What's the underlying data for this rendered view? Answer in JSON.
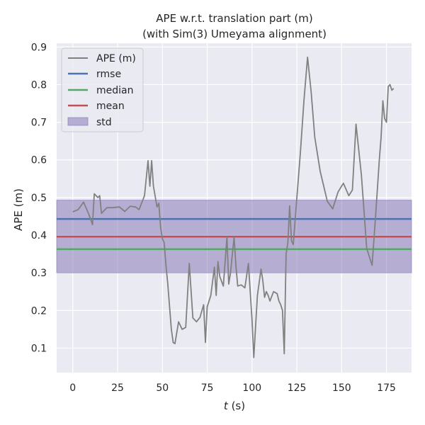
{
  "chart_data": {
    "type": "line",
    "title": "APE w.r.t. translation part (m)",
    "subtitle": "(with Sim(3) Umeyama alignment)",
    "xlabel_var": "t",
    "xlabel_unit": " (s)",
    "ylabel": "APE (m)",
    "xlim": [
      -9,
      189
    ],
    "ylim": [
      0.035,
      0.91
    ],
    "xticks": [
      0,
      25,
      50,
      75,
      100,
      125,
      150,
      175
    ],
    "yticks": [
      0.1,
      0.2,
      0.3,
      0.4,
      0.5,
      0.6,
      0.7,
      0.8,
      0.9
    ],
    "grid": true,
    "legend_position": "top-left",
    "legend": [
      "APE (m)",
      "rmse",
      "median",
      "mean",
      "std"
    ],
    "colors": {
      "background": "#eaeaf2",
      "grid": "#ffffff",
      "ape": "#808080",
      "rmse": "#4c72b0",
      "median": "#55a868",
      "mean": "#c44e52",
      "std": "#8172b2"
    },
    "stats": {
      "rmse": 0.443,
      "median": 0.363,
      "mean": 0.396,
      "std_band": [
        0.3,
        0.493
      ]
    },
    "series": [
      {
        "name": "APE (m)",
        "x": [
          0,
          3,
          6,
          9,
          11,
          12,
          14,
          15,
          16,
          19,
          22,
          26,
          29,
          32,
          35,
          37,
          40,
          42,
          43,
          44,
          45,
          47,
          48,
          49,
          50,
          51,
          52,
          53,
          55,
          56,
          57,
          59,
          61,
          63,
          65,
          67,
          69,
          71,
          73,
          74,
          75,
          77,
          79,
          80,
          81,
          82,
          84,
          86,
          87,
          88,
          90,
          91,
          92,
          94,
          96,
          98,
          100,
          101,
          102,
          103,
          105,
          106,
          107,
          108,
          109,
          110,
          112,
          114,
          115,
          116,
          117,
          118,
          119,
          120,
          121,
          122,
          123,
          125,
          127,
          129,
          131,
          133,
          135,
          138,
          142,
          145,
          148,
          151,
          154,
          156,
          158,
          161,
          164,
          167,
          169,
          171,
          172,
          173,
          174,
          175,
          176,
          177,
          178,
          179
        ],
        "values": [
          0.462,
          0.468,
          0.488,
          0.455,
          0.428,
          0.51,
          0.5,
          0.505,
          0.458,
          0.473,
          0.473,
          0.475,
          0.463,
          0.477,
          0.475,
          0.468,
          0.505,
          0.598,
          0.53,
          0.598,
          0.53,
          0.475,
          0.485,
          0.42,
          0.39,
          0.38,
          0.32,
          0.27,
          0.15,
          0.115,
          0.112,
          0.17,
          0.15,
          0.155,
          0.325,
          0.18,
          0.17,
          0.182,
          0.215,
          0.115,
          0.21,
          0.24,
          0.315,
          0.24,
          0.33,
          0.29,
          0.265,
          0.395,
          0.27,
          0.3,
          0.395,
          0.32,
          0.265,
          0.268,
          0.26,
          0.325,
          0.175,
          0.075,
          0.16,
          0.24,
          0.31,
          0.28,
          0.235,
          0.25,
          0.24,
          0.225,
          0.25,
          0.245,
          0.225,
          0.215,
          0.2,
          0.085,
          0.35,
          0.38,
          0.478,
          0.385,
          0.375,
          0.5,
          0.62,
          0.76,
          0.873,
          0.78,
          0.66,
          0.57,
          0.49,
          0.47,
          0.515,
          0.538,
          0.505,
          0.52,
          0.695,
          0.56,
          0.365,
          0.32,
          0.455,
          0.6,
          0.66,
          0.757,
          0.71,
          0.7,
          0.795,
          0.8,
          0.785,
          0.79
        ]
      }
    ]
  }
}
